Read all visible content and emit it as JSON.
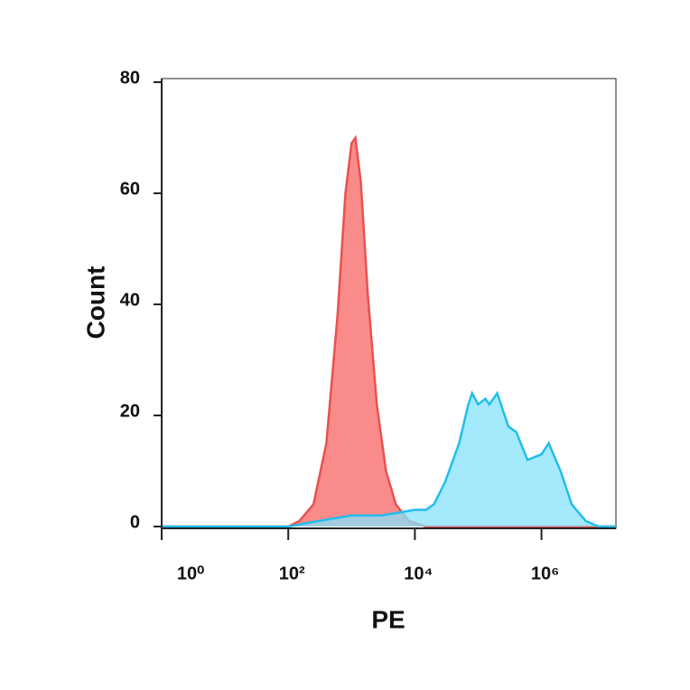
{
  "chart_data": {
    "type": "area",
    "xlabel": "PE",
    "ylabel": "Count",
    "xscale": "log",
    "xlim": [
      1,
      15000000
    ],
    "xticks": [
      {
        "value": 1,
        "label": "10⁰"
      },
      {
        "value": 100,
        "label": "10²"
      },
      {
        "value": 10000,
        "label": "10⁴"
      },
      {
        "value": 1000000,
        "label": "10⁶"
      }
    ],
    "ylim": [
      0,
      80
    ],
    "yticks": [
      0,
      20,
      40,
      60,
      80
    ],
    "series": [
      {
        "color": "#e8524f",
        "fill": "#f98585",
        "x": [
          1,
          100,
          150,
          250,
          400,
          600,
          800,
          1000,
          1150,
          1400,
          1800,
          2500,
          3500,
          5000,
          8000,
          15000,
          15000000
        ],
        "values": [
          0,
          0,
          1,
          4,
          15,
          38,
          60,
          69,
          70,
          62,
          42,
          22,
          10,
          4,
          1,
          0,
          0
        ]
      },
      {
        "color": "#22bdee",
        "fill": "#86e2fb",
        "x": [
          1,
          100,
          300,
          1000,
          3000,
          10000,
          15000,
          20000,
          30000,
          50000,
          70000,
          80000,
          100000,
          130000,
          150000,
          200000,
          300000,
          400000,
          600000,
          1000000,
          1300000,
          2000000,
          3000000,
          5000000,
          8000000,
          15000000
        ],
        "values": [
          0,
          0,
          1,
          2,
          2,
          3,
          3,
          4,
          8,
          15,
          22,
          24,
          22,
          23,
          22,
          24,
          18,
          17,
          12,
          13,
          15,
          10,
          4,
          1,
          0,
          0
        ]
      }
    ]
  }
}
